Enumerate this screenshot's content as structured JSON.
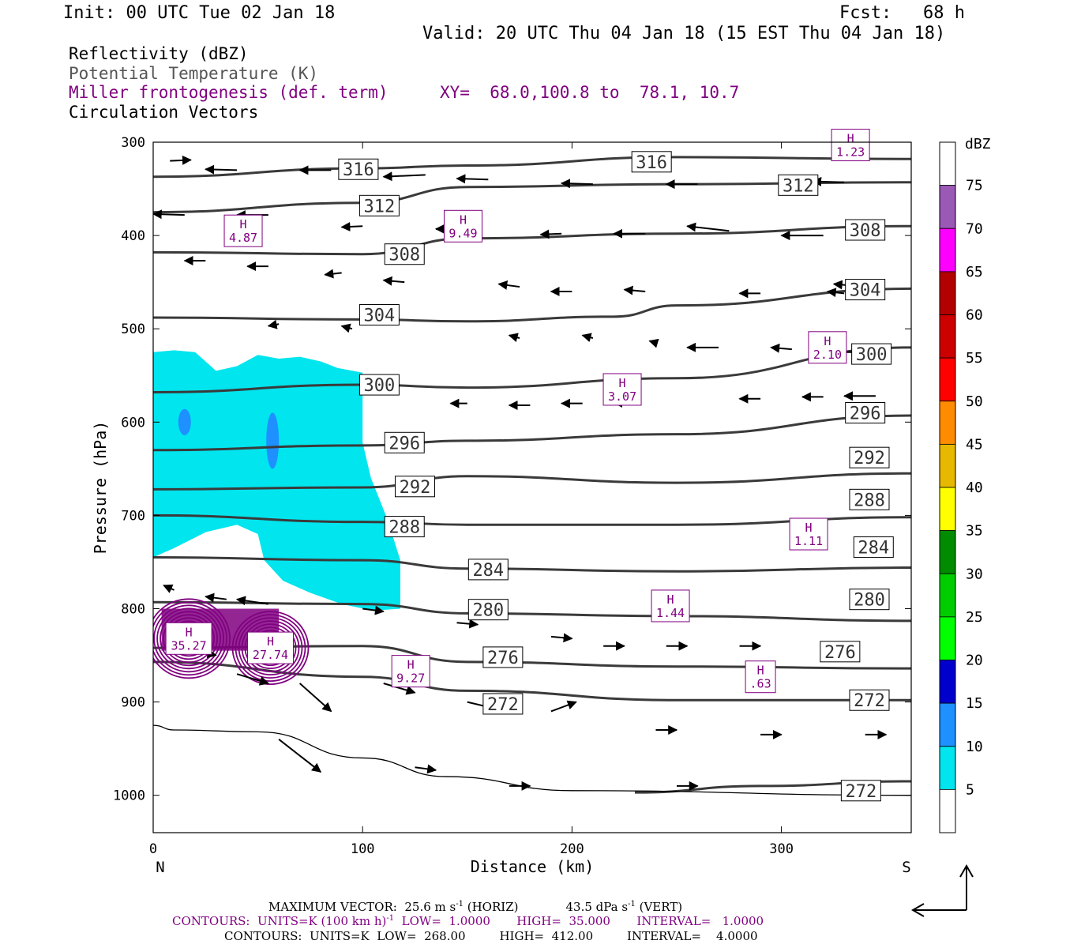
{
  "header": {
    "init": "Init: 00 UTC Tue 02 Jan 18",
    "fcst": "Fcst:   68 h",
    "valid": "Valid: 20 UTC Thu 04 Jan 18 (15 EST Thu 04 Jan 18)"
  },
  "legend": {
    "reflectivity": "Reflectivity (dBZ)",
    "theta": "Potential Temperature (K)",
    "miller": "Miller frontogenesis (def. term)",
    "xy": "XY=  68.0,100.8 to  78.1, 10.7",
    "vectors": "Circulation Vectors"
  },
  "footer": {
    "line1a": "MAXIMUM VECTOR:  25.6 m s",
    "line1a_exp": "-1",
    "line1b": " (HORIZ)",
    "line1c": "43.5 dPa s",
    "line1c_exp": "-1",
    "line1d": " (VERT)",
    "line2a": "CONTOURS:  UNITS=K (100 km h)",
    "line2a_exp": "-1",
    "line2b": "  LOW=  1.0000       HIGH=  35.000       INTERVAL=   1.0000",
    "line3": "CONTOURS:  UNITS=K  LOW=  268.00         HIGH=  412.00         INTERVAL=    4.0000"
  },
  "chart_data": {
    "type": "cross-section",
    "xlabel": "Distance (km)",
    "ylabel": "Pressure (hPa)",
    "xlim": [
      0,
      362
    ],
    "ylim": [
      1040,
      300
    ],
    "x_ticks": [
      "0",
      "100",
      "200",
      "300"
    ],
    "y_ticks": [
      "300",
      "400",
      "500",
      "600",
      "700",
      "800",
      "900",
      "1000"
    ],
    "end_labels": {
      "left": "N",
      "right": "S"
    },
    "colorbar": {
      "title": "dBZ",
      "labels": [
        "5",
        "10",
        "15",
        "20",
        "25",
        "30",
        "35",
        "40",
        "45",
        "50",
        "55",
        "60",
        "65",
        "70",
        "75"
      ],
      "colors": [
        "#00e5ee",
        "#1e90ff",
        "#0000cd",
        "#00ff00",
        "#00cd00",
        "#008b00",
        "#ffff00",
        "#e6b800",
        "#ff8c00",
        "#ff0000",
        "#cd0000",
        "#b30000",
        "#ff00ff",
        "#9b59b6",
        "#ffffff"
      ]
    },
    "theta_isentropes": [
      {
        "label": "316",
        "points": [
          [
            0,
            337
          ],
          [
            100,
            328
          ],
          [
            150,
            325
          ],
          [
            250,
            316
          ],
          [
            362,
            318
          ]
        ]
      },
      {
        "label": "312",
        "points": [
          [
            0,
            375
          ],
          [
            100,
            365
          ],
          [
            150,
            348
          ],
          [
            250,
            345
          ],
          [
            362,
            343
          ]
        ]
      },
      {
        "label": "308",
        "points": [
          [
            0,
            418
          ],
          [
            100,
            420
          ],
          [
            150,
            403
          ],
          [
            250,
            398
          ],
          [
            362,
            390
          ]
        ]
      },
      {
        "label": "304",
        "points": [
          [
            0,
            488
          ],
          [
            100,
            490
          ],
          [
            150,
            492
          ],
          [
            220,
            487
          ],
          [
            250,
            475
          ],
          [
            362,
            457
          ]
        ]
      },
      {
        "label": "300",
        "points": [
          [
            0,
            568
          ],
          [
            100,
            560
          ],
          [
            150,
            563
          ],
          [
            250,
            553
          ],
          [
            362,
            520
          ]
        ]
      },
      {
        "label": "296",
        "points": [
          [
            0,
            630
          ],
          [
            100,
            625
          ],
          [
            150,
            620
          ],
          [
            250,
            613
          ],
          [
            362,
            593
          ]
        ]
      },
      {
        "label": "292",
        "points": [
          [
            0,
            672
          ],
          [
            100,
            670
          ],
          [
            150,
            658
          ],
          [
            250,
            665
          ],
          [
            362,
            655
          ]
        ]
      },
      {
        "label": "288",
        "points": [
          [
            0,
            700
          ],
          [
            100,
            707
          ],
          [
            150,
            710
          ],
          [
            250,
            710
          ],
          [
            362,
            702
          ]
        ]
      },
      {
        "label": "284",
        "points": [
          [
            0,
            745
          ],
          [
            100,
            748
          ],
          [
            150,
            757
          ],
          [
            250,
            760
          ],
          [
            362,
            756
          ]
        ]
      },
      {
        "label": "280",
        "points": [
          [
            0,
            793
          ],
          [
            100,
            795
          ],
          [
            150,
            805
          ],
          [
            250,
            808
          ],
          [
            362,
            813
          ]
        ]
      },
      {
        "label": "276",
        "points": [
          [
            0,
            842
          ],
          [
            100,
            840
          ],
          [
            150,
            857
          ],
          [
            250,
            862
          ],
          [
            362,
            864
          ]
        ]
      },
      {
        "label": "272",
        "points": [
          [
            0,
            857
          ],
          [
            100,
            873
          ],
          [
            150,
            888
          ],
          [
            250,
            898
          ],
          [
            362,
            898
          ]
        ]
      },
      {
        "label": "272",
        "points": [
          [
            230,
            997
          ],
          [
            290,
            990
          ],
          [
            362,
            985
          ]
        ]
      }
    ],
    "theta_labels": [
      {
        "text": "316",
        "x": 98,
        "p": 329
      },
      {
        "text": "316",
        "x": 238,
        "p": 321
      },
      {
        "text": "312",
        "x": 108,
        "p": 368
      },
      {
        "text": "312",
        "x": 308,
        "p": 346
      },
      {
        "text": "308",
        "x": 120,
        "p": 420
      },
      {
        "text": "308",
        "x": 340,
        "p": 394
      },
      {
        "text": "304",
        "x": 108,
        "p": 485
      },
      {
        "text": "304",
        "x": 340,
        "p": 458
      },
      {
        "text": "300",
        "x": 108,
        "p": 560
      },
      {
        "text": "300",
        "x": 343,
        "p": 527
      },
      {
        "text": "296",
        "x": 120,
        "p": 622
      },
      {
        "text": "296",
        "x": 340,
        "p": 590
      },
      {
        "text": "292",
        "x": 125,
        "p": 669
      },
      {
        "text": "292",
        "x": 342,
        "p": 638
      },
      {
        "text": "288",
        "x": 120,
        "p": 712
      },
      {
        "text": "288",
        "x": 342,
        "p": 683
      },
      {
        "text": "284",
        "x": 160,
        "p": 758
      },
      {
        "text": "284",
        "x": 344,
        "p": 734
      },
      {
        "text": "280",
        "x": 160,
        "p": 801
      },
      {
        "text": "280",
        "x": 342,
        "p": 790
      },
      {
        "text": "276",
        "x": 167,
        "p": 852
      },
      {
        "text": "276",
        "x": 328,
        "p": 846
      },
      {
        "text": "272",
        "x": 167,
        "p": 902
      },
      {
        "text": "272",
        "x": 342,
        "p": 898
      },
      {
        "text": "272",
        "x": 338,
        "p": 995
      }
    ],
    "frontogenesis_maxima": [
      {
        "value": "4.87",
        "x": 43,
        "p": 395
      },
      {
        "value": "9.49",
        "x": 148,
        "p": 390
      },
      {
        "value": "3.07",
        "x": 224,
        "p": 565
      },
      {
        "value": "2.10",
        "x": 322,
        "p": 520
      },
      {
        "value": "1.11",
        "x": 313,
        "p": 720
      },
      {
        "value": "1.44",
        "x": 247,
        "p": 797
      },
      {
        "value": ".63",
        "x": 290,
        "p": 873
      },
      {
        "value": "35.27",
        "x": 17,
        "p": 832
      },
      {
        "value": "27.74",
        "x": 56,
        "p": 842
      },
      {
        "value": "9.27",
        "x": 123,
        "p": 867
      },
      {
        "value": "1.23",
        "x": 333,
        "p": 303
      }
    ],
    "reflectivity_5dbz_region": [
      [
        0,
        525
      ],
      [
        10,
        523
      ],
      [
        20,
        525
      ],
      [
        30,
        545
      ],
      [
        40,
        540
      ],
      [
        50,
        528
      ],
      [
        60,
        532
      ],
      [
        70,
        530
      ],
      [
        80,
        535
      ],
      [
        88,
        542
      ],
      [
        100,
        547
      ],
      [
        100,
        622
      ],
      [
        104,
        660
      ],
      [
        112,
        705
      ],
      [
        118,
        748
      ],
      [
        118,
        800
      ],
      [
        105,
        802
      ],
      [
        90,
        795
      ],
      [
        75,
        783
      ],
      [
        62,
        770
      ],
      [
        53,
        748
      ],
      [
        50,
        720
      ],
      [
        40,
        710
      ],
      [
        25,
        718
      ],
      [
        10,
        735
      ],
      [
        0,
        745
      ]
    ],
    "reflectivity_10dbz_spots": [
      {
        "x": 15,
        "p": 600,
        "rx": 3,
        "rp": 14
      },
      {
        "x": 57,
        "p": 620,
        "rx": 3,
        "rp": 30
      }
    ],
    "circulation_vectors": [
      [
        8,
        320,
        10,
        -1
      ],
      [
        40,
        330,
        -15,
        -1
      ],
      [
        85,
        330,
        -15,
        0
      ],
      [
        130,
        335,
        -20,
        2
      ],
      [
        160,
        340,
        -15,
        -1
      ],
      [
        210,
        345,
        -15,
        -1
      ],
      [
        260,
        345,
        -15,
        0
      ],
      [
        330,
        343,
        -15,
        -1
      ],
      [
        15,
        378,
        -15,
        -1
      ],
      [
        55,
        378,
        -15,
        0
      ],
      [
        100,
        390,
        -10,
        1
      ],
      [
        150,
        393,
        -15,
        0
      ],
      [
        195,
        398,
        -10,
        1
      ],
      [
        235,
        398,
        -15,
        0
      ],
      [
        275,
        395,
        -20,
        -5
      ],
      [
        320,
        400,
        -20,
        0
      ],
      [
        25,
        427,
        -10,
        0
      ],
      [
        55,
        433,
        -10,
        0
      ],
      [
        90,
        440,
        -8,
        2
      ],
      [
        120,
        450,
        -10,
        -2
      ],
      [
        175,
        455,
        -10,
        -3
      ],
      [
        200,
        460,
        -10,
        0
      ],
      [
        235,
        460,
        -10,
        -2
      ],
      [
        290,
        462,
        -10,
        0
      ],
      [
        340,
        455,
        -15,
        -3
      ],
      [
        330,
        462,
        -8,
        -2
      ],
      [
        60,
        495,
        -5,
        2
      ],
      [
        95,
        500,
        -5,
        -3
      ],
      [
        175,
        510,
        -5,
        -3
      ],
      [
        210,
        510,
        -5,
        -3
      ],
      [
        240,
        515,
        -3,
        -2
      ],
      [
        270,
        520,
        -15,
        0
      ],
      [
        305,
        522,
        -10,
        -2
      ],
      [
        340,
        525,
        -15,
        0
      ],
      [
        150,
        580,
        -8,
        0
      ],
      [
        180,
        582,
        -10,
        0
      ],
      [
        205,
        580,
        -10,
        0
      ],
      [
        230,
        580,
        -10,
        -1
      ],
      [
        290,
        575,
        -10,
        0
      ],
      [
        320,
        573,
        -10,
        0
      ],
      [
        345,
        572,
        -15,
        0
      ],
      [
        10,
        780,
        -5,
        -5
      ],
      [
        35,
        790,
        -10,
        -3
      ],
      [
        55,
        795,
        -15,
        -5
      ],
      [
        100,
        800,
        10,
        3
      ],
      [
        145,
        815,
        10,
        2
      ],
      [
        190,
        830,
        10,
        2
      ],
      [
        215,
        840,
        10,
        0
      ],
      [
        245,
        840,
        10,
        0
      ],
      [
        280,
        840,
        10,
        0
      ],
      [
        320,
        840,
        10,
        0
      ],
      [
        10,
        840,
        20,
        10
      ],
      [
        40,
        870,
        15,
        10
      ],
      [
        70,
        880,
        15,
        30
      ],
      [
        110,
        880,
        15,
        10
      ],
      [
        150,
        900,
        15,
        8
      ],
      [
        190,
        910,
        12,
        -10
      ],
      [
        240,
        930,
        10,
        0
      ],
      [
        290,
        935,
        10,
        0
      ],
      [
        340,
        935,
        10,
        0
      ],
      [
        60,
        940,
        20,
        35
      ],
      [
        125,
        970,
        10,
        3
      ],
      [
        170,
        990,
        10,
        0
      ],
      [
        250,
        990,
        10,
        0
      ],
      [
        330,
        995,
        10,
        0
      ]
    ],
    "surface_line": [
      [
        0,
        925
      ],
      [
        10,
        930
      ],
      [
        50,
        932
      ],
      [
        100,
        960
      ],
      [
        140,
        980
      ],
      [
        200,
        995
      ],
      [
        362,
        1000
      ]
    ]
  }
}
